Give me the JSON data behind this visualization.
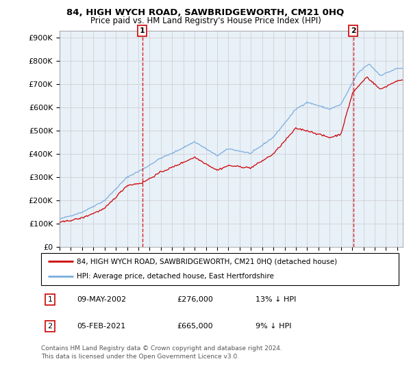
{
  "title": "84, HIGH WYCH ROAD, SAWBRIDGEWORTH, CM21 0HQ",
  "subtitle": "Price paid vs. HM Land Registry's House Price Index (HPI)",
  "ylabel_ticks": [
    "£0",
    "£100K",
    "£200K",
    "£300K",
    "£400K",
    "£500K",
    "£600K",
    "£700K",
    "£800K",
    "£900K"
  ],
  "ytick_values": [
    0,
    100000,
    200000,
    300000,
    400000,
    500000,
    600000,
    700000,
    800000,
    900000
  ],
  "ylim": [
    0,
    930000
  ],
  "xlim_start": 1995.0,
  "xlim_end": 2025.5,
  "hpi_color": "#7aaddc",
  "price_color": "#cc0000",
  "plot_bg_color": "#e8f0f8",
  "transaction1_year": 2002.35,
  "transaction1_price": 276000,
  "transaction2_year": 2021.09,
  "transaction2_price": 665000,
  "legend_line1": "84, HIGH WYCH ROAD, SAWBRIDGEWORTH, CM21 0HQ (detached house)",
  "legend_line2": "HPI: Average price, detached house, East Hertfordshire",
  "table_row1": [
    "1",
    "09-MAY-2002",
    "£276,000",
    "13% ↓ HPI"
  ],
  "table_row2": [
    "2",
    "05-FEB-2021",
    "£665,000",
    "9% ↓ HPI"
  ],
  "footnote": "Contains HM Land Registry data © Crown copyright and database right 2024.\nThis data is licensed under the Open Government Licence v3.0.",
  "background_color": "#ffffff",
  "grid_color": "#cccccc"
}
